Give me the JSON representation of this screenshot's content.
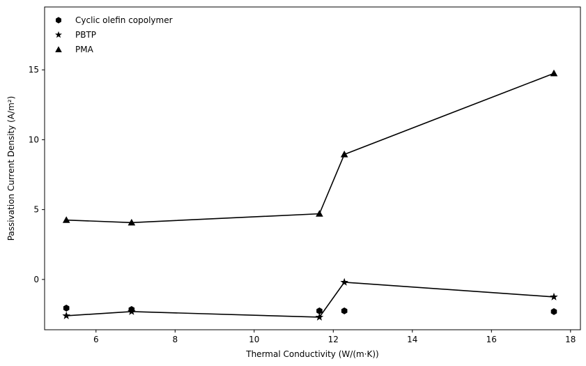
{
  "chart_data": {
    "type": "line",
    "title": "",
    "xlabel": "Thermal Conductivity (W/(m·K))",
    "ylabel": "Passivation Current Density (A/m²)",
    "xlim": [
      4.7,
      18.25
    ],
    "ylim": [
      -3.6,
      19.5
    ],
    "xticks": [
      6,
      8,
      10,
      12,
      14,
      16,
      18
    ],
    "yticks": [
      0,
      5,
      10,
      15
    ],
    "grid": false,
    "legend_position": "top-left",
    "series": [
      {
        "name": "Cyclic olefin copolymer",
        "marker": "hexagon",
        "line": false,
        "x": [
          5.25,
          6.9,
          11.65,
          12.28,
          17.58
        ],
        "y": [
          -2.05,
          -2.15,
          -2.25,
          -2.25,
          -2.3
        ]
      },
      {
        "name": "PBTP",
        "marker": "star",
        "line": true,
        "x": [
          5.25,
          6.9,
          11.65,
          12.28,
          17.58
        ],
        "y": [
          -2.6,
          -2.3,
          -2.7,
          -0.2,
          -1.25
        ]
      },
      {
        "name": "PMA",
        "marker": "triangle",
        "line": true,
        "x": [
          5.25,
          6.9,
          11.65,
          12.28,
          17.58
        ],
        "y": [
          4.25,
          4.07,
          4.7,
          8.95,
          14.75
        ]
      }
    ]
  }
}
